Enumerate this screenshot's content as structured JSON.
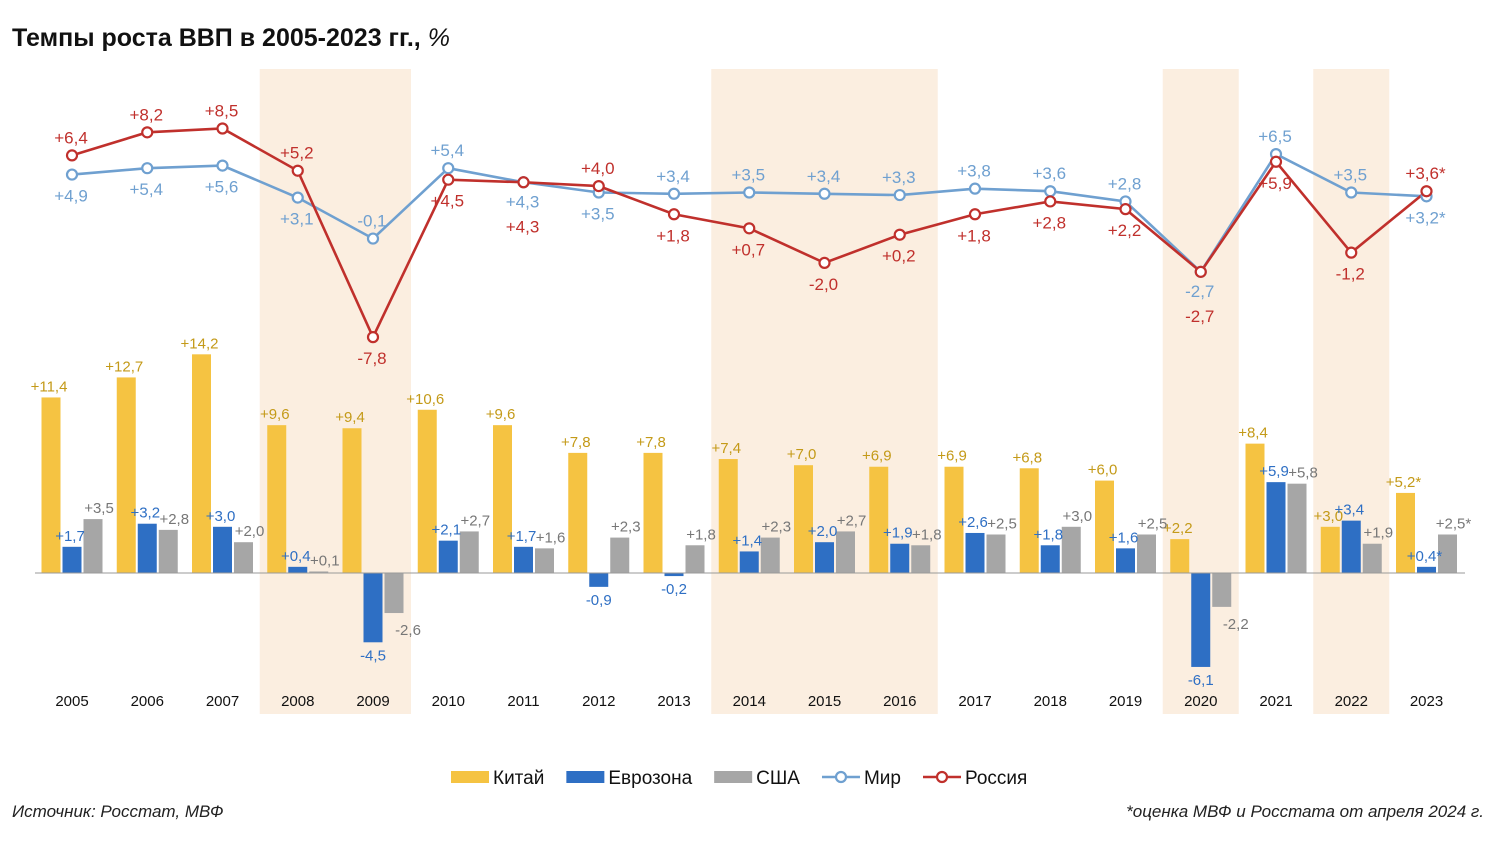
{
  "title": "Темпы роста ВВП в 2005-2023 гг.,",
  "title_unit": "%",
  "source": "Источник: Росстат, МВФ",
  "footnote": "*оценка МВФ и Росстата от апреля 2024 г.",
  "chart_data": {
    "type": "bar",
    "categories": [
      "2005",
      "2006",
      "2007",
      "2008",
      "2009",
      "2010",
      "2011",
      "2012",
      "2013",
      "2014",
      "2015",
      "2016",
      "2017",
      "2018",
      "2019",
      "2020",
      "2021",
      "2022",
      "2023"
    ],
    "highlighted_years": [
      "2008",
      "2009",
      "2014",
      "2015",
      "2016",
      "2020",
      "2022"
    ],
    "bar_series": [
      {
        "name": "Китай",
        "color": "#f5c342",
        "values": [
          11.4,
          12.7,
          14.2,
          9.6,
          9.4,
          10.6,
          9.6,
          7.8,
          7.8,
          7.4,
          7.0,
          6.9,
          6.9,
          6.8,
          6.0,
          2.2,
          8.4,
          3.0,
          5.2
        ],
        "labels": [
          "+11,4",
          "+12,7",
          "+14,2",
          "+9,6",
          "+9,4",
          "+10,6",
          "+9,6",
          "+7,8",
          "+7,8",
          "+7,4",
          "+7,0",
          "+6,9",
          "+6,9",
          "+6,8",
          "+6,0",
          "+2,2",
          "+8,4",
          "+3,0",
          "+5,2*"
        ]
      },
      {
        "name": "Еврозона",
        "color": "#2e6fc4",
        "values": [
          1.7,
          3.2,
          3.0,
          0.4,
          -4.5,
          2.1,
          1.7,
          -0.9,
          -0.2,
          1.4,
          2.0,
          1.9,
          2.6,
          1.8,
          1.6,
          -6.1,
          5.9,
          3.4,
          0.4
        ],
        "labels": [
          "+1,7",
          "+3,2",
          "+3,0",
          "+0,4",
          "-4,5",
          "+2,1",
          "+1,7",
          "-0,9",
          "-0,2",
          "+1,4",
          "+2,0",
          "+1,9",
          "+2,6",
          "+1,8",
          "+1,6",
          "-6,1",
          "+5,9",
          "+3,4",
          "+0,4*"
        ]
      },
      {
        "name": "США",
        "color": "#a6a6a6",
        "values": [
          3.5,
          2.8,
          2.0,
          0.1,
          -2.6,
          2.7,
          1.6,
          2.3,
          1.8,
          2.3,
          2.7,
          1.8,
          2.5,
          3.0,
          2.5,
          -2.2,
          5.8,
          1.9,
          2.5
        ],
        "labels": [
          "+3,5",
          "+2,8",
          "+2,0",
          "+0,1",
          "-2,6",
          "+2,7",
          "+1,6",
          "+2,3",
          "+1,8",
          "+2,3",
          "+2,7",
          "+1,8",
          "+2,5",
          "+3,0",
          "+2,5",
          "-2,2",
          "+5,8",
          "+1,9",
          "+2,5*"
        ]
      }
    ],
    "line_series": [
      {
        "name": "Мир",
        "color": "#6fa0d0",
        "values": [
          4.9,
          5.4,
          5.6,
          3.1,
          -0.1,
          5.4,
          4.3,
          3.5,
          3.4,
          3.5,
          3.4,
          3.3,
          3.8,
          3.6,
          2.8,
          -2.7,
          6.5,
          3.5,
          3.2
        ],
        "labels": [
          "+4,9",
          "+5,4",
          "+5,6",
          "+3,1",
          "-0,1",
          "+5,4",
          "+4,3",
          "+3,5",
          "+3,4",
          "+3,5",
          "+3,4",
          "+3,3",
          "+3,8",
          "+3,6",
          "+2,8",
          "-2,7",
          "+6,5",
          "+3,5",
          "+3,2*"
        ]
      },
      {
        "name": "Россия",
        "color": "#c0302c",
        "values": [
          6.4,
          8.2,
          8.5,
          5.2,
          -7.8,
          4.5,
          4.3,
          4.0,
          1.8,
          0.7,
          -2.0,
          0.2,
          1.8,
          2.8,
          2.2,
          -2.7,
          5.9,
          -1.2,
          3.6
        ],
        "labels": [
          "+6,4",
          "+8,2",
          "+8,5",
          "+5,2",
          "-7,8",
          "+4,5",
          "+4,3",
          "+4,0",
          "+1,8",
          "+0,7",
          "-2,0",
          "+0,2",
          "+1,8",
          "+2,8",
          "+2,2",
          "-2,7",
          "+5,9",
          "-1,2",
          "+3,6*"
        ]
      }
    ],
    "legend": [
      "Китай",
      "Еврозона",
      "США",
      "Мир",
      "Россия"
    ],
    "legend_position": "bottom",
    "grid": false
  }
}
